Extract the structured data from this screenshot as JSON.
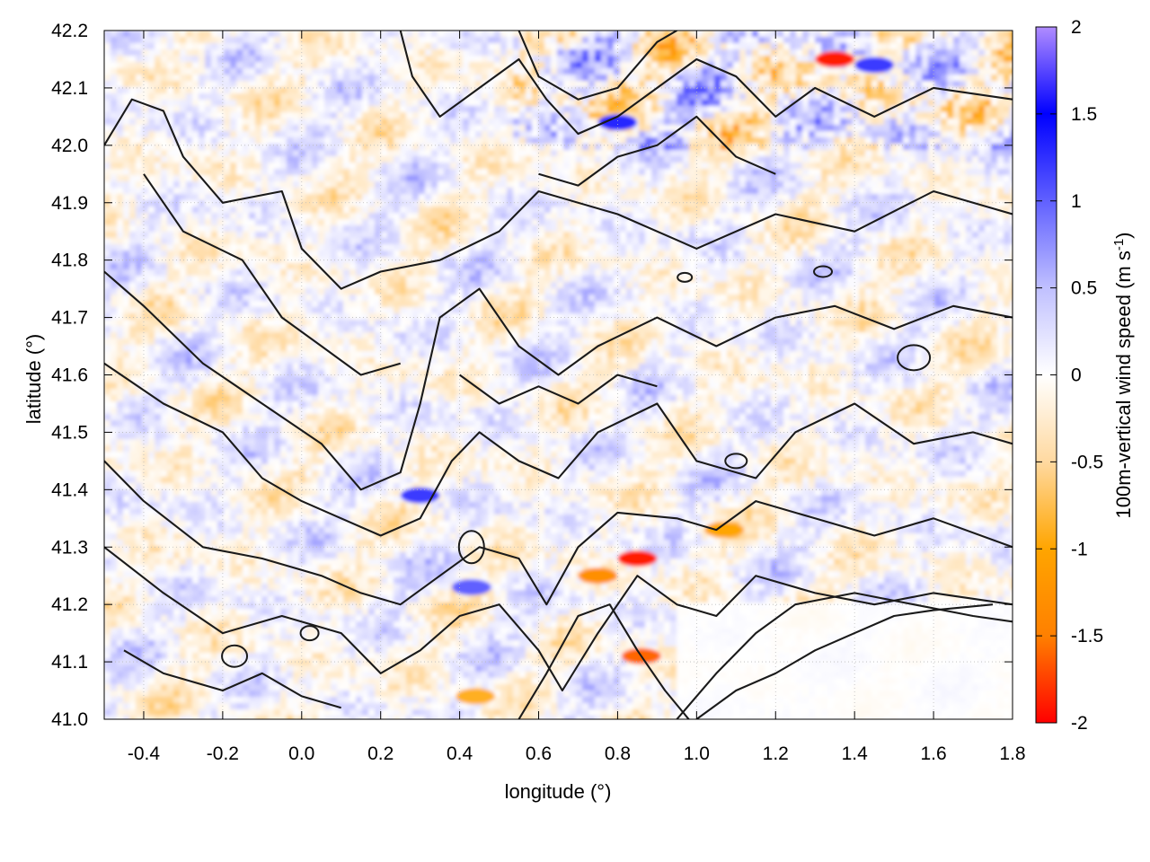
{
  "chart_data": {
    "type": "heatmap",
    "xlabel": "longitude (°)",
    "ylabel": "latitude (°)",
    "xlim": [
      -0.5,
      1.8
    ],
    "ylim": [
      41.0,
      42.2
    ],
    "x_ticks": [
      "-0.4",
      "-0.2",
      "0.0",
      "0.2",
      "0.4",
      "0.6",
      "0.8",
      "1.0",
      "1.2",
      "1.4",
      "1.6",
      "1.8"
    ],
    "y_ticks": [
      "41.0",
      "41.1",
      "41.2",
      "41.3",
      "41.4",
      "41.5",
      "41.6",
      "41.7",
      "41.8",
      "41.9",
      "42.0",
      "42.1",
      "42.2"
    ],
    "grid": true,
    "colorbar": {
      "label": "100m-vertical wind speed (m s",
      "label_superscript": "-1",
      "label_suffix": ")",
      "range": [
        -2,
        2
      ],
      "ticks": [
        "2",
        "1.5",
        "1",
        "0.5",
        "0",
        "-0.5",
        "-1",
        "-1.5",
        "-2"
      ],
      "colors": [
        "#ff0000",
        "#ff8000",
        "#ffa500",
        "#ffd9a0",
        "#ffffff",
        "#c0c0ff",
        "#6060ff",
        "#0000ff",
        "#b08cff"
      ]
    },
    "field_description": "vertical wind speed anomaly field with overlaid terrain elevation contour lines",
    "contour_color": "#1a1a1a"
  }
}
